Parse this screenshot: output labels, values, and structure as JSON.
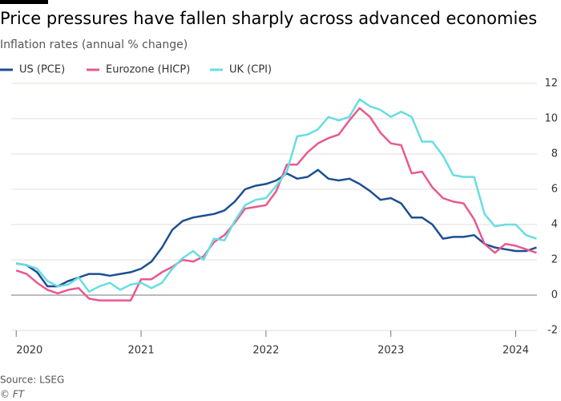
{
  "chart_data": {
    "type": "line",
    "title": "Price pressures have fallen sharply across advanced economies",
    "subtitle": "Inflation rates (annual % change)",
    "source": "Source: LSEG",
    "credit": "© FT",
    "x": [
      2020,
      2020.083,
      2020.167,
      2020.25,
      2020.333,
      2020.417,
      2020.5,
      2020.583,
      2020.667,
      2020.75,
      2020.833,
      2020.917,
      2021,
      2021.083,
      2021.167,
      2021.25,
      2021.333,
      2021.417,
      2021.5,
      2021.583,
      2021.667,
      2021.75,
      2021.833,
      2021.917,
      2022,
      2022.083,
      2022.167,
      2022.25,
      2022.333,
      2022.417,
      2022.5,
      2022.583,
      2022.667,
      2022.75,
      2022.833,
      2022.917,
      2023,
      2023.083,
      2023.167,
      2023.25,
      2023.333,
      2023.417,
      2023.5,
      2023.583,
      2023.667,
      2023.75,
      2023.833,
      2023.917,
      2024,
      2024.083,
      2024.167
    ],
    "series": [
      {
        "name": "US (PCE)",
        "color": "#1d4f91",
        "values": [
          1.8,
          1.7,
          1.3,
          0.5,
          0.5,
          0.8,
          1.0,
          1.2,
          1.2,
          1.1,
          1.2,
          1.3,
          1.5,
          1.9,
          2.7,
          3.7,
          4.2,
          4.4,
          4.5,
          4.6,
          4.8,
          5.3,
          6.0,
          6.2,
          6.3,
          6.5,
          6.9,
          6.6,
          6.7,
          7.1,
          6.6,
          6.5,
          6.6,
          6.3,
          5.9,
          5.4,
          5.5,
          5.2,
          4.4,
          4.4,
          4.0,
          3.2,
          3.3,
          3.3,
          3.4,
          2.9,
          2.7,
          2.6,
          2.5,
          2.5,
          2.7
        ]
      },
      {
        "name": "Eurozone (HICP)",
        "color": "#e8598f",
        "values": [
          1.4,
          1.2,
          0.7,
          0.3,
          0.1,
          0.3,
          0.4,
          -0.2,
          -0.3,
          -0.3,
          -0.3,
          -0.3,
          0.9,
          0.9,
          1.3,
          1.6,
          2.0,
          1.9,
          2.2,
          3.0,
          3.4,
          4.1,
          4.9,
          5.0,
          5.1,
          5.9,
          7.4,
          7.4,
          8.1,
          8.6,
          8.9,
          9.1,
          9.9,
          10.6,
          10.1,
          9.2,
          8.6,
          8.5,
          6.9,
          7.0,
          6.1,
          5.5,
          5.3,
          5.2,
          4.3,
          2.9,
          2.4,
          2.9,
          2.8,
          2.6,
          2.4
        ]
      },
      {
        "name": "UK (CPI)",
        "color": "#67dde3",
        "values": [
          1.8,
          1.7,
          1.5,
          0.8,
          0.5,
          0.6,
          1.0,
          0.2,
          0.5,
          0.7,
          0.3,
          0.6,
          0.7,
          0.4,
          0.7,
          1.5,
          2.1,
          2.5,
          2.0,
          3.2,
          3.1,
          4.2,
          5.1,
          5.4,
          5.5,
          6.2,
          7.0,
          9.0,
          9.1,
          9.4,
          10.1,
          9.9,
          10.1,
          11.1,
          10.7,
          10.5,
          10.1,
          10.4,
          10.1,
          8.7,
          8.7,
          7.9,
          6.8,
          6.7,
          6.7,
          4.6,
          3.9,
          4.0,
          4.0,
          3.4,
          3.2
        ]
      }
    ],
    "xlim": [
      2019.96,
      2024.17
    ],
    "xticks": [
      2020,
      2021,
      2022,
      2023,
      2024
    ],
    "ylim": [
      -2,
      12
    ],
    "yticks": [
      -2,
      0,
      2,
      4,
      6,
      8,
      10,
      12
    ],
    "grid": true
  }
}
